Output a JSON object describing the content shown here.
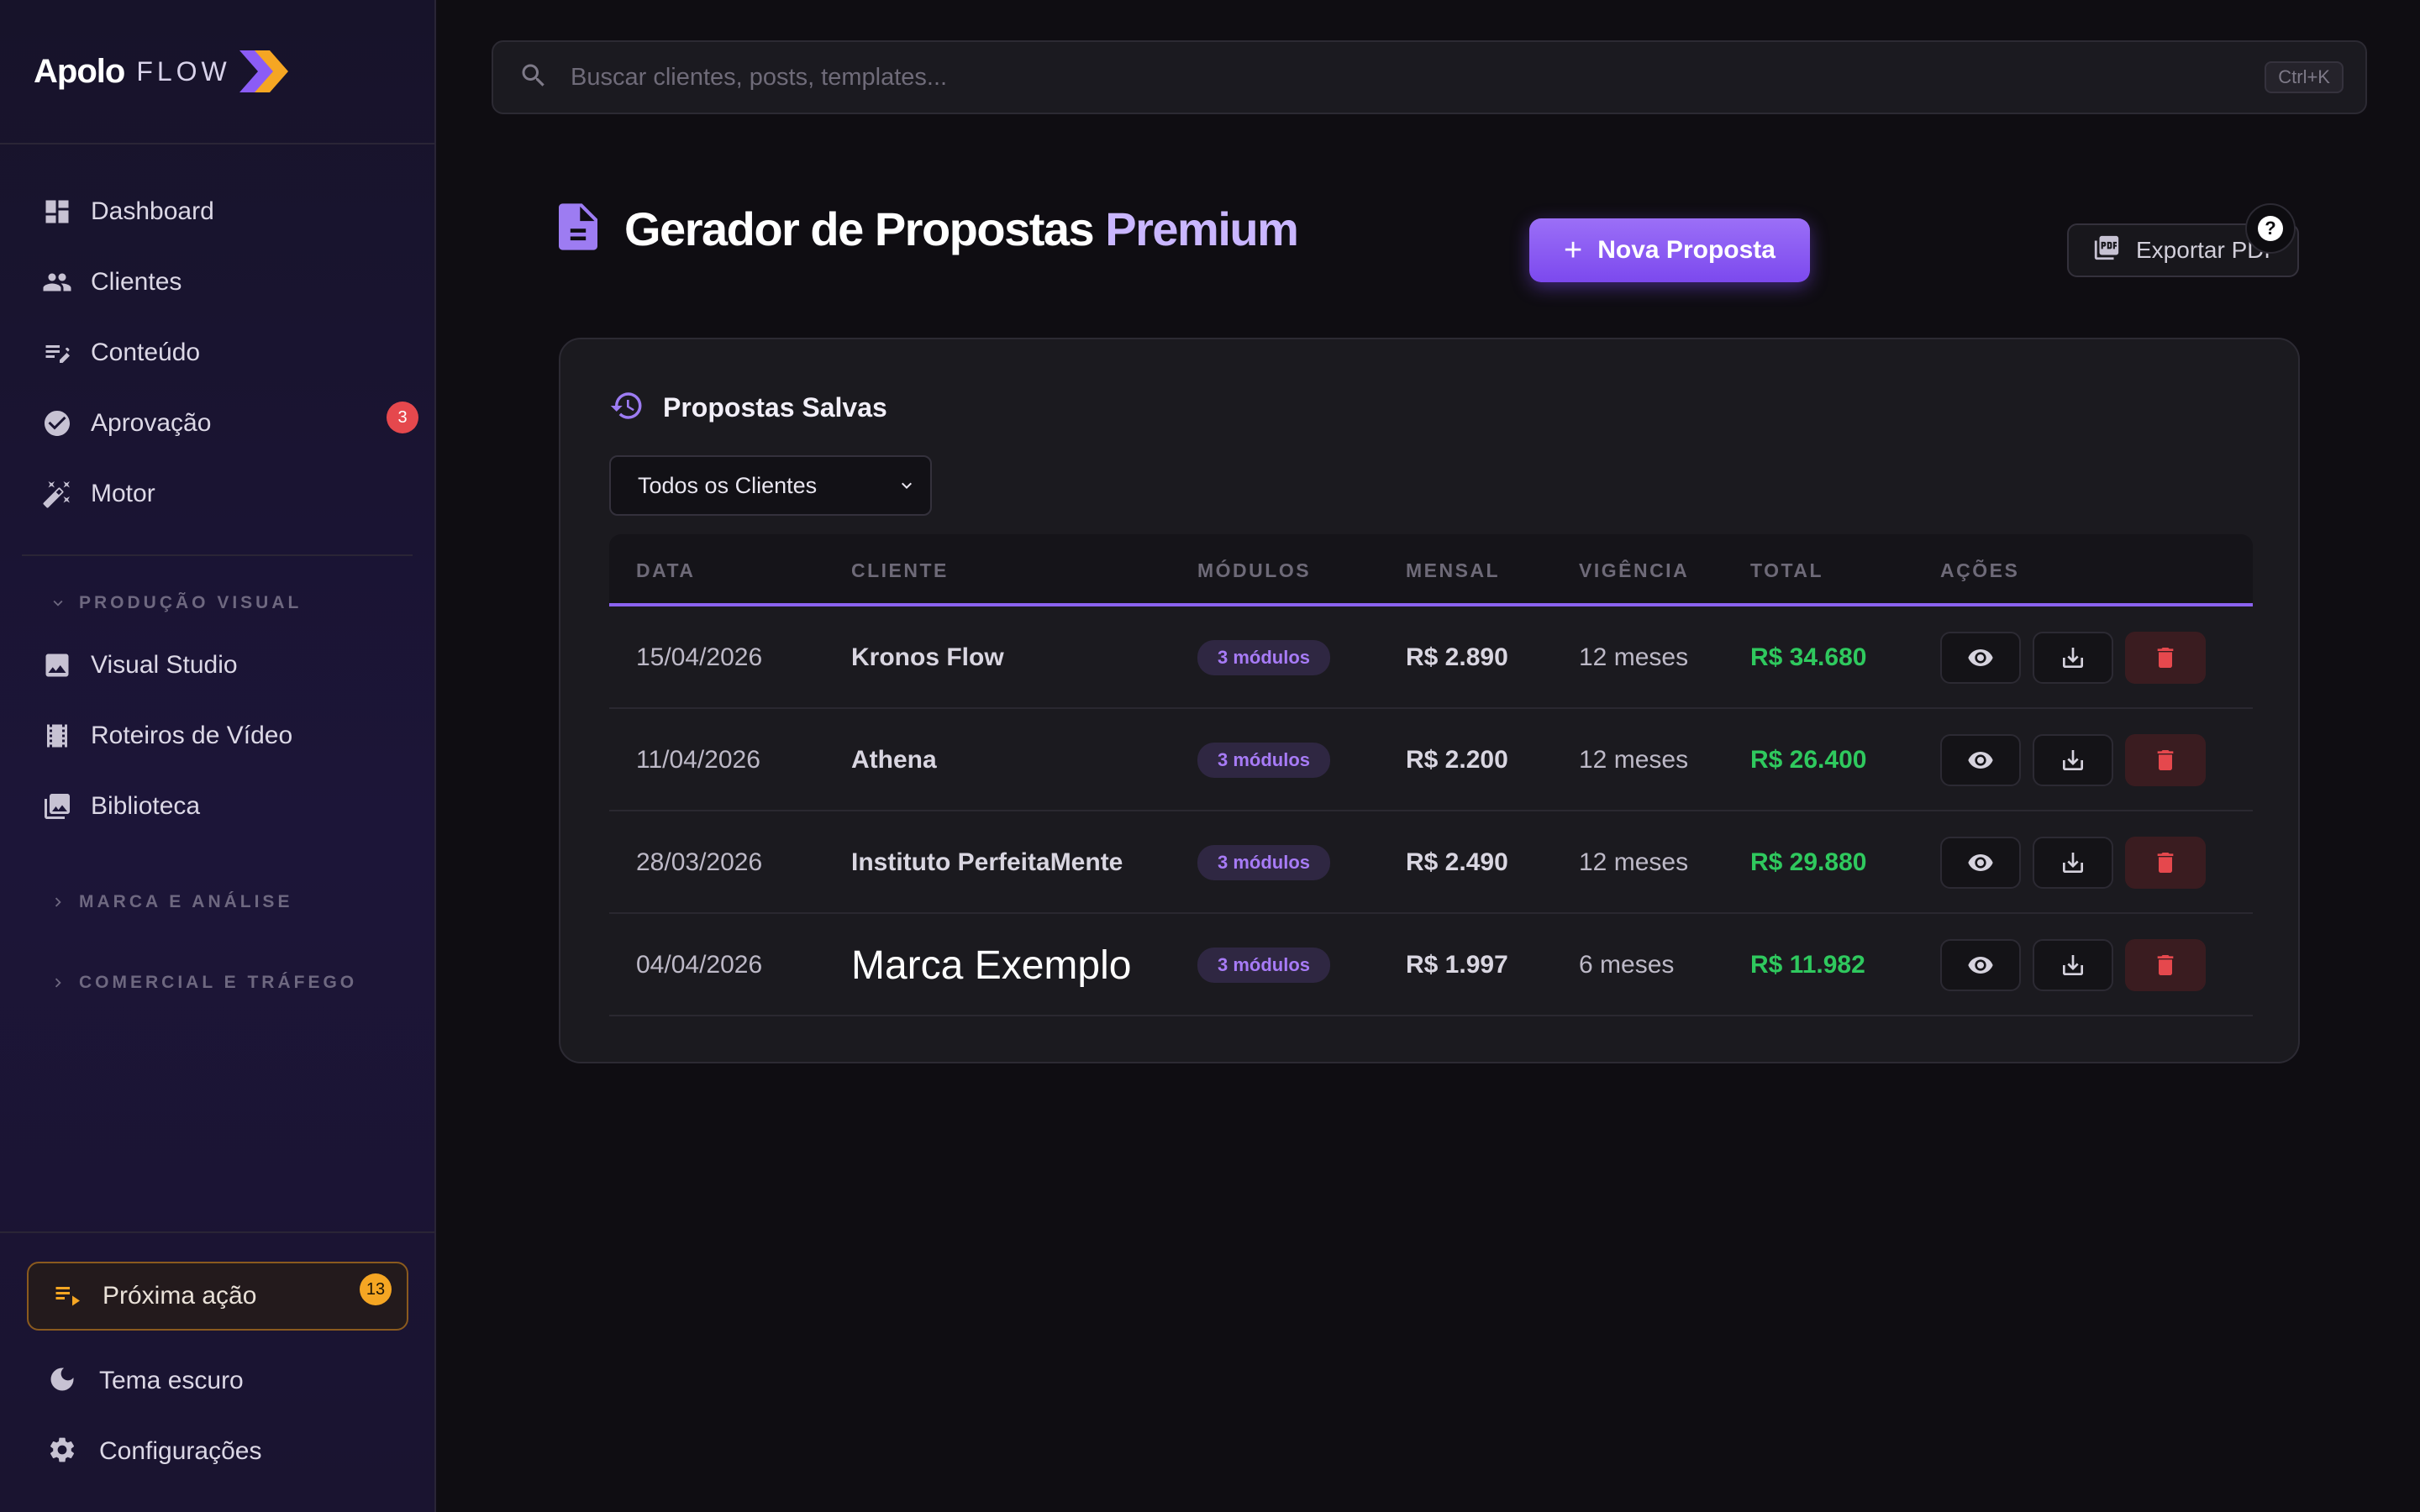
{
  "brand": {
    "name": "Apolo",
    "suffix": "FLOW"
  },
  "sidebar": {
    "items": [
      {
        "label": "Dashboard",
        "icon": "dashboard-icon"
      },
      {
        "label": "Clientes",
        "icon": "users-icon"
      },
      {
        "label": "Conteúdo",
        "icon": "edit-note-icon"
      },
      {
        "label": "Aprovação",
        "icon": "check-circle-icon",
        "badge": "3"
      },
      {
        "label": "Motor",
        "icon": "magic-wand-icon"
      }
    ],
    "sections": [
      {
        "label": "PRODUÇÃO VISUAL",
        "expanded": true,
        "items": [
          {
            "label": "Visual Studio",
            "icon": "image-icon"
          },
          {
            "label": "Roteiros de Vídeo",
            "icon": "film-icon"
          },
          {
            "label": "Biblioteca",
            "icon": "photo-library-icon"
          }
        ]
      },
      {
        "label": "MARCA E ANÁLISE",
        "expanded": false
      },
      {
        "label": "COMERCIAL E TRÁFEGO",
        "expanded": false
      }
    ],
    "footer": {
      "next_action": {
        "label": "Próxima ação",
        "badge": "13"
      },
      "theme": "Tema escuro",
      "settings": "Configurações"
    }
  },
  "search": {
    "placeholder": "Buscar clientes, posts, templates...",
    "shortcut": "Ctrl+K"
  },
  "page": {
    "title_main": "Gerador de Propostas",
    "title_accent": "Premium",
    "new_button": "Nova Proposta",
    "export_button": "Exportar PDF",
    "help": "?"
  },
  "card": {
    "title": "Propostas Salvas",
    "filter": {
      "selected": "Todos os Clientes"
    },
    "columns": [
      "DATA",
      "CLIENTE",
      "MÓDULOS",
      "MENSAL",
      "VIGÊNCIA",
      "TOTAL",
      "AÇÕES"
    ],
    "rows": [
      {
        "date": "15/04/2026",
        "client": "Kronos Flow",
        "modules": "3 módulos",
        "monthly": "R$ 2.890",
        "term": "12 meses",
        "total": "R$ 34.680"
      },
      {
        "date": "11/04/2026",
        "client": "Athena",
        "modules": "3 módulos",
        "monthly": "R$ 2.200",
        "term": "12 meses",
        "total": "R$ 26.400"
      },
      {
        "date": "28/03/2026",
        "client": "Instituto PerfeitaMente",
        "modules": "3 módulos",
        "monthly": "R$ 2.490",
        "term": "12 meses",
        "total": "R$ 29.880"
      },
      {
        "date": "04/04/2026",
        "client": "Marca Exemplo",
        "modules": "3 módulos",
        "monthly": "R$ 1.997",
        "term": "6 meses",
        "total": "R$ 11.982"
      }
    ]
  },
  "colors": {
    "accent": "#8b63f0",
    "positive": "#2fc95e",
    "danger": "#e5484d",
    "warning": "#f5a623"
  }
}
